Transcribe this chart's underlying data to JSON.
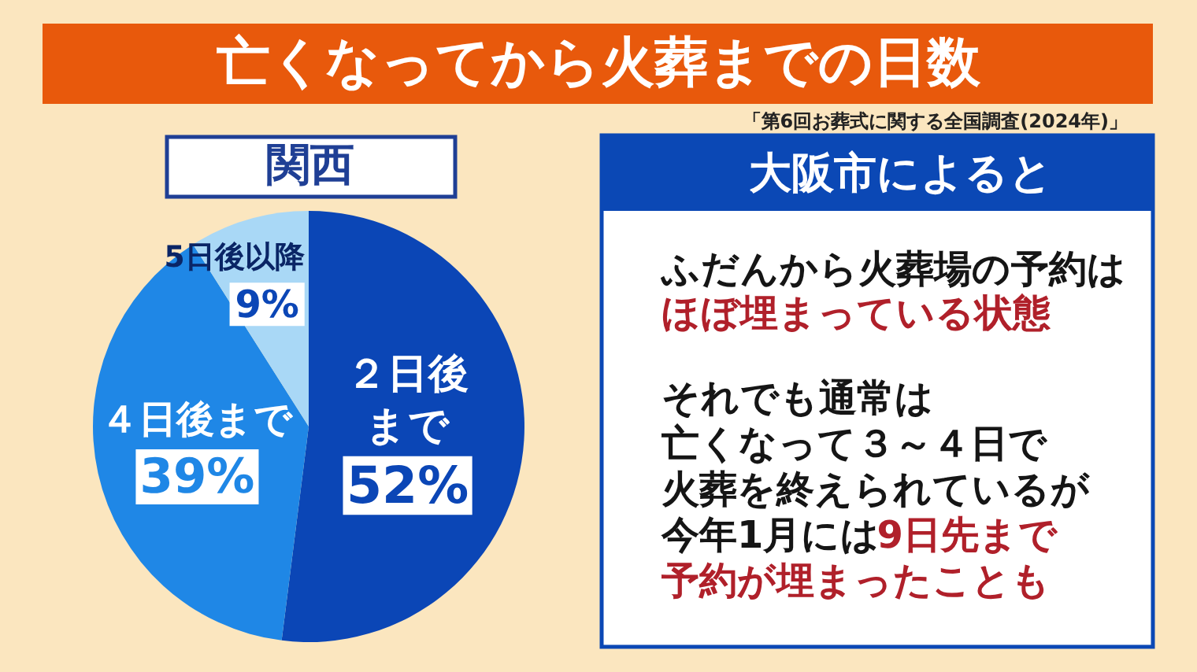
{
  "chart_data": [
    {
      "type": "pie",
      "title": "亡くなってから火葬までの日数",
      "subtitle": "関西",
      "annotations": [
        "「第6回お葬式に関する全国調査(2024年)」"
      ],
      "categories": [
        "２日後まで",
        "４日後まで",
        "5日後以降"
      ],
      "values": [
        52,
        39,
        9
      ],
      "colors": [
        "#0b46b6",
        "#1f87e6",
        "#a9d8f6"
      ],
      "value_labels": [
        "52%",
        "39%",
        "9%"
      ]
    },
    {
      "type": "other",
      "title": "大阪市によると",
      "annotations": [
        "ふだんから火葬場の予約は",
        "ほぼ埋まっている状態",
        "それでも通常は",
        "亡くなって３～４日で",
        "火葬を終えられているが",
        "今年1月には",
        "9日先まで",
        "予約が埋まったことも"
      ],
      "colors": [
        "#151515",
        "#b0202a",
        "#151515",
        "#151515",
        "#151515",
        "#151515",
        "#b0202a",
        "#b0202a"
      ]
    }
  ]
}
